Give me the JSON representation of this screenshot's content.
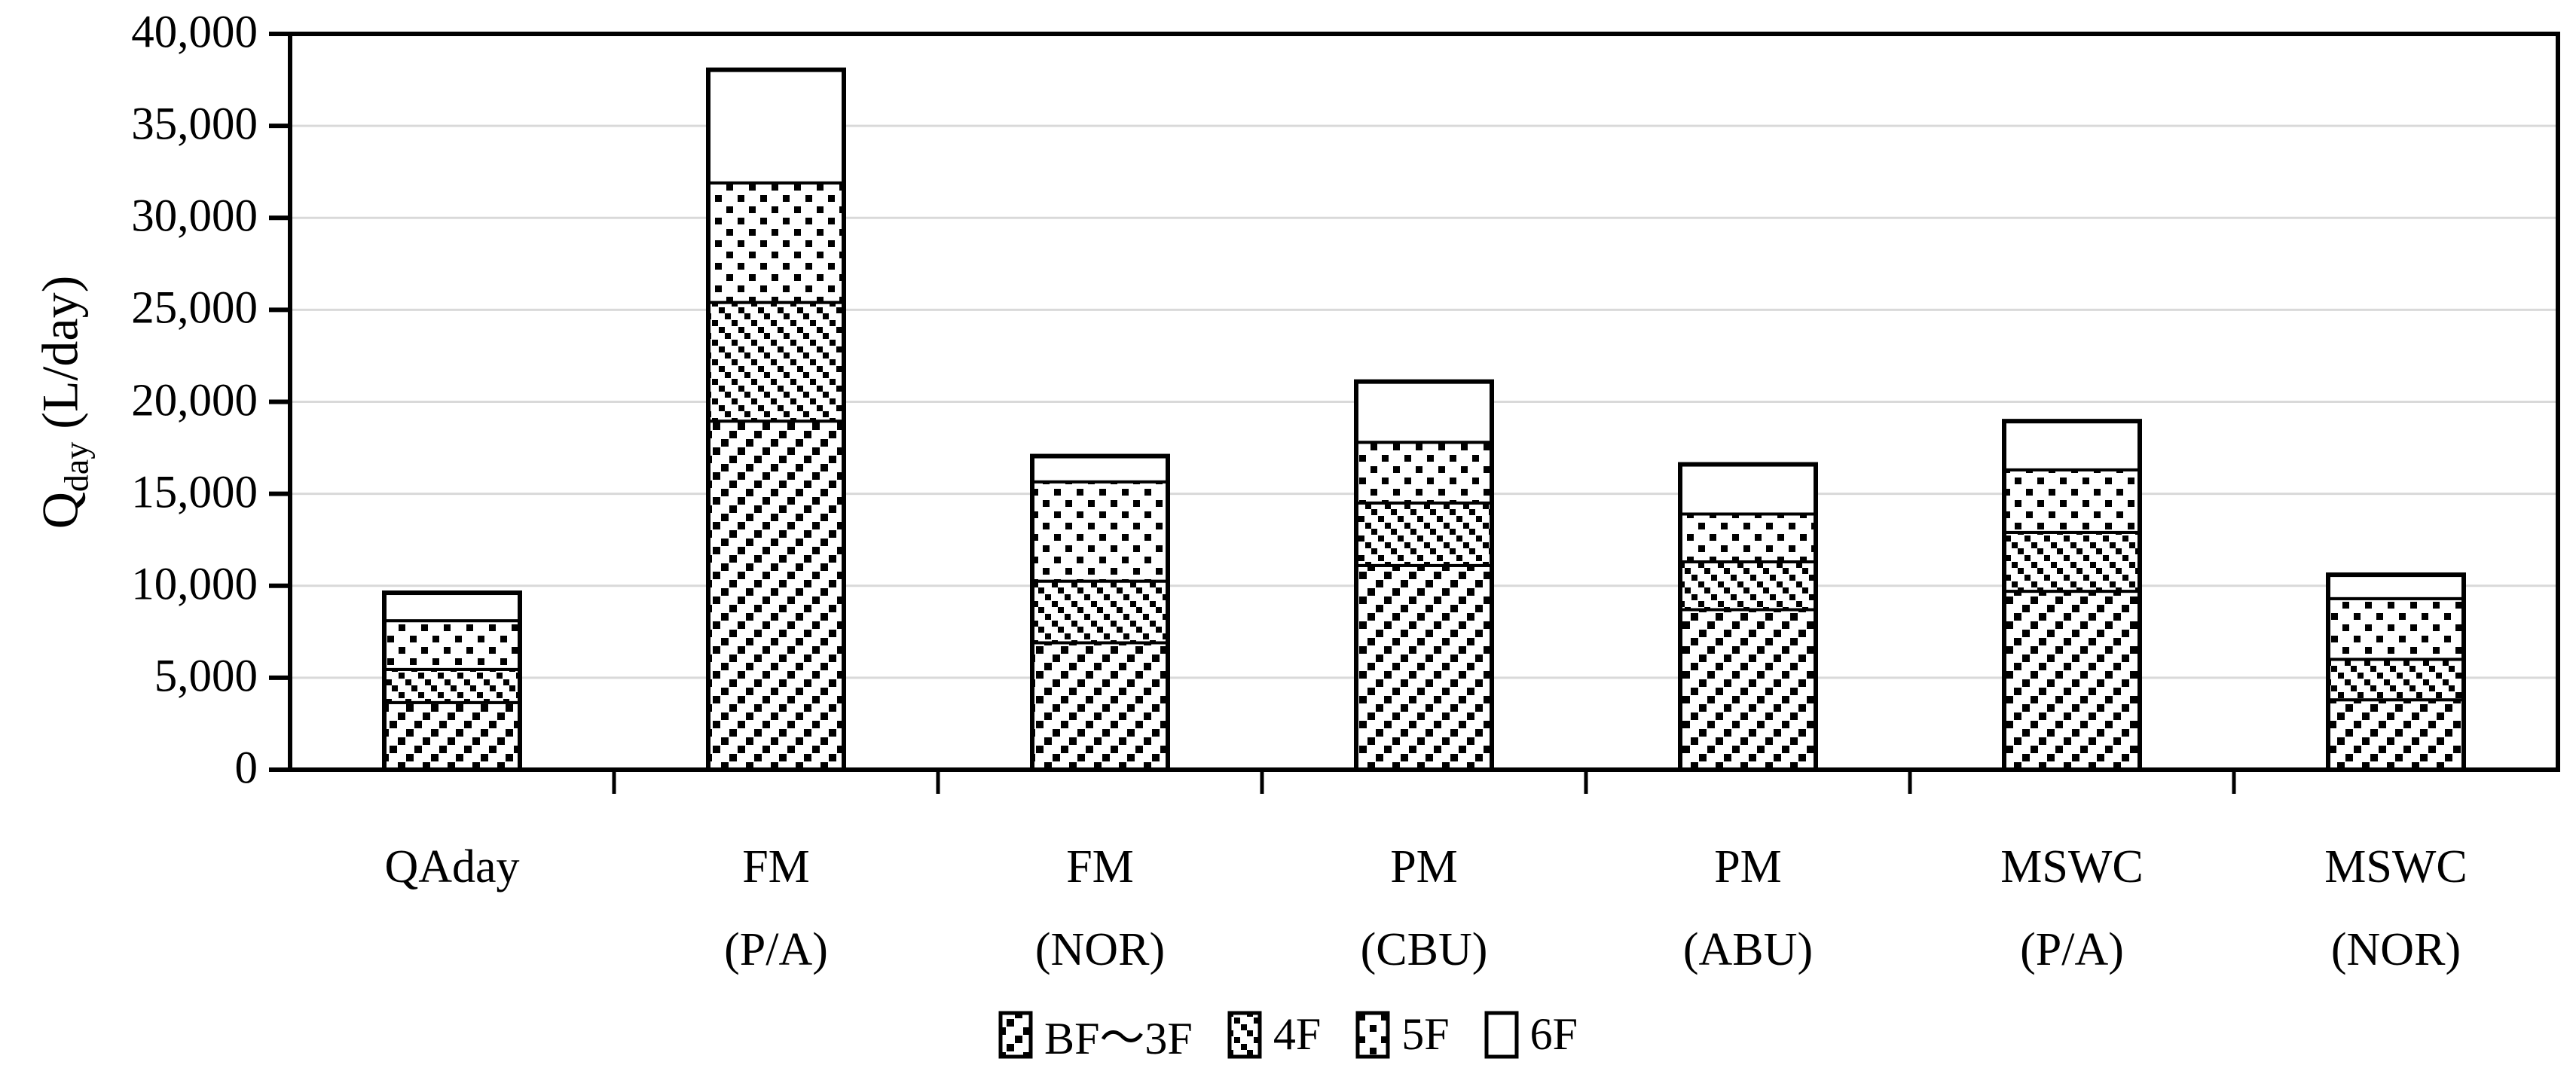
{
  "figure": {
    "background_color": "#ffffff",
    "axis_color": "#000000",
    "gridline_color": "#d9d9d9",
    "bar_fill_color": "#ffffff",
    "pattern_color": "#000000"
  },
  "chart_data": {
    "type": "bar",
    "stacked": true,
    "title": "",
    "xlabel": "",
    "ylabel": {
      "main": "Q",
      "subscript": "day",
      "unit": " (L/day)"
    },
    "ylim": [
      0,
      40000
    ],
    "ytick_interval": 5000,
    "ytick_labels": [
      "0",
      "5,000",
      "10,000",
      "15,000",
      "20,000",
      "25,000",
      "30,000",
      "35,000",
      "40,000"
    ],
    "grid": true,
    "legend_position": "bottom",
    "categories": [
      {
        "lines": [
          "QAday"
        ]
      },
      {
        "lines": [
          "FM",
          "(P/A)"
        ]
      },
      {
        "lines": [
          "FM",
          "(NOR)"
        ]
      },
      {
        "lines": [
          "PM",
          "(CBU)"
        ]
      },
      {
        "lines": [
          "PM",
          "(ABU)"
        ]
      },
      {
        "lines": [
          "MSWC",
          "(P/A)"
        ]
      },
      {
        "lines": [
          "MSWC",
          "(NOR)"
        ]
      }
    ],
    "series": [
      {
        "name": "BF～3F",
        "pattern": "diagonal-up-squares",
        "values": [
          3650,
          18950,
          6900,
          11100,
          8700,
          9700,
          3800
        ]
      },
      {
        "name": "4F",
        "pattern": "diagonal-down-squares",
        "values": [
          1800,
          6450,
          3350,
          3400,
          2600,
          3200,
          2200
        ]
      },
      {
        "name": "5F",
        "pattern": "dots",
        "values": [
          2650,
          6500,
          5400,
          3300,
          2600,
          3400,
          3300
        ]
      },
      {
        "name": "6F",
        "pattern": "plain",
        "values": [
          1520,
          6150,
          1400,
          3300,
          2700,
          2650,
          1300
        ]
      }
    ],
    "stacked_totals": [
      9620,
      38050,
      17050,
      21100,
      16600,
      18950,
      10600
    ]
  }
}
